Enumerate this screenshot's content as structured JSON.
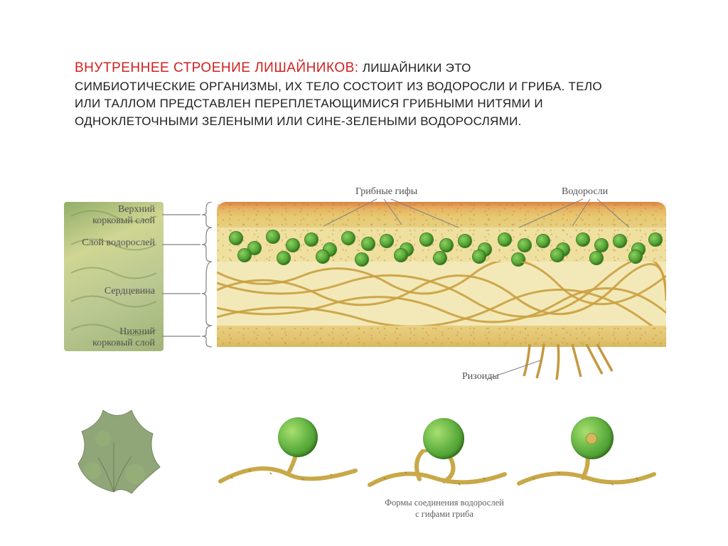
{
  "header": {
    "title": "Внутреннее строение лишайников:",
    "body_lines": [
      "лишайники это",
      "симбиотические организмы, их тело состоит из водоросли и гриба. Тело",
      "или таллом представлен переплетающимися грибными нитями и",
      "одноклеточными зелеными или сине-зелеными водорослями."
    ]
  },
  "colors": {
    "title_color": "#d02020",
    "body_color": "#202020",
    "cortex_top_grad": [
      "#e08040",
      "#e5b060",
      "#e8c870",
      "#e6cf80"
    ],
    "algal_bg": "#efe0a0",
    "medulla_bg": "#f3e9b8",
    "cortex_bottom_grad": [
      "#e8cf80",
      "#e3c470",
      "#d8b860"
    ],
    "alga_cell_grad": [
      "#8bd060",
      "#4fa030",
      "#2d6f18"
    ],
    "hypha_color": "#caa040",
    "label_color": "#505050",
    "rhizoid_color": "#c49840"
  },
  "top_labels": {
    "hyphae": "Грибные гифы",
    "algae": "Водоросли"
  },
  "left_labels": {
    "upper_cortex": "Верхний\nкорковый слой",
    "algal_layer": "Слой водорослей",
    "medulla": "Сердцевина",
    "lower_cortex": "Нижний\nкорковый слой"
  },
  "rhizoid_label": "Ризоиды",
  "bottom_caption": "Формы соединения водорослей\nс гифами гриба",
  "layers": {
    "upper_cortex_h": 36,
    "algal_h": 48,
    "medulla_h": 90,
    "lower_cortex_h": 30
  },
  "algae_cells": [
    [
      18,
      42
    ],
    [
      44,
      56
    ],
    [
      70,
      40
    ],
    [
      98,
      52
    ],
    [
      124,
      44
    ],
    [
      150,
      58
    ],
    [
      176,
      42
    ],
    [
      204,
      50
    ],
    [
      230,
      46
    ],
    [
      258,
      58
    ],
    [
      286,
      44
    ],
    [
      314,
      52
    ],
    [
      340,
      46
    ],
    [
      368,
      58
    ],
    [
      396,
      44
    ],
    [
      424,
      52
    ],
    [
      450,
      46
    ],
    [
      478,
      58
    ],
    [
      506,
      44
    ],
    [
      532,
      52
    ],
    [
      558,
      46
    ],
    [
      584,
      58
    ],
    [
      608,
      44
    ],
    [
      30,
      66
    ],
    [
      85,
      70
    ],
    [
      140,
      68
    ],
    [
      195,
      72
    ],
    [
      250,
      66
    ],
    [
      305,
      70
    ],
    [
      360,
      68
    ],
    [
      415,
      72
    ],
    [
      470,
      66
    ],
    [
      525,
      70
    ],
    [
      580,
      68
    ]
  ],
  "mini_cells": {
    "size_large": 56,
    "positions": [
      70,
      280,
      490
    ]
  },
  "fontsize": {
    "title": 19,
    "body": 17,
    "label": 14,
    "caption": 12.5
  }
}
